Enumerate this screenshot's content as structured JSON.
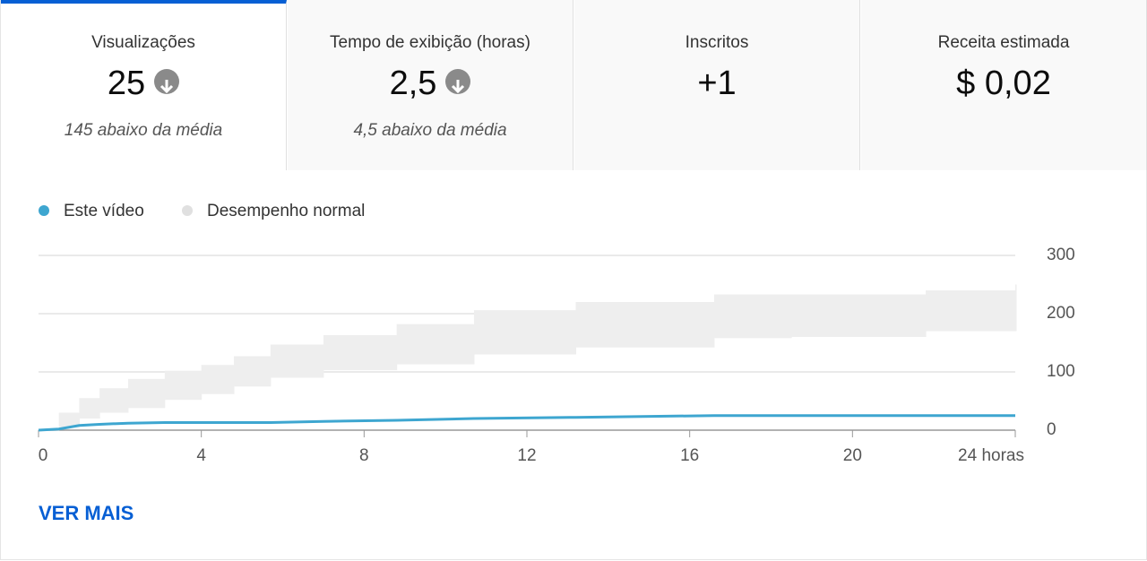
{
  "tabs": [
    {
      "label": "Visualizações",
      "value": "25",
      "trend": "down",
      "note": "145 abaixo da média",
      "selected": true
    },
    {
      "label": "Tempo de exibição (horas)",
      "value": "2,5",
      "trend": "down",
      "note": "4,5 abaixo da média"
    },
    {
      "label": "Inscritos",
      "value": "+1"
    },
    {
      "label": "Receita estimada",
      "value": "$ 0,02"
    }
  ],
  "chart_data": {
    "type": "line",
    "x": [
      0,
      0.5,
      1,
      1.5,
      2.2,
      3.1,
      4,
      4.8,
      5.7,
      7,
      8.8,
      10.7,
      13.2,
      16.6,
      18.5,
      21.8,
      24
    ],
    "series": [
      {
        "name": "Este vídeo",
        "color": "#3ea6d0",
        "values": [
          0,
          2,
          8,
          10,
          12,
          13,
          13,
          13,
          13,
          15,
          17,
          20,
          22,
          25,
          25,
          25,
          25
        ]
      },
      {
        "name": "Desempenho normal",
        "color": "#e0e0e0",
        "low": [
          0,
          5,
          20,
          30,
          38,
          52,
          62,
          75,
          90,
          103,
          113,
          130,
          142,
          158,
          160,
          170,
          170
        ],
        "high": [
          0,
          30,
          55,
          72,
          88,
          102,
          112,
          127,
          147,
          163,
          182,
          206,
          220,
          233,
          233,
          240,
          250
        ]
      }
    ],
    "xlim": [
      0,
      24
    ],
    "xticks": [
      0,
      4,
      8,
      12,
      16,
      20,
      {
        "value": 24,
        "label": "24 horas"
      }
    ],
    "ylim": [
      0,
      300
    ],
    "yticks": [
      0,
      100,
      200,
      300
    ],
    "grid": true
  },
  "button": "VER MAIS"
}
